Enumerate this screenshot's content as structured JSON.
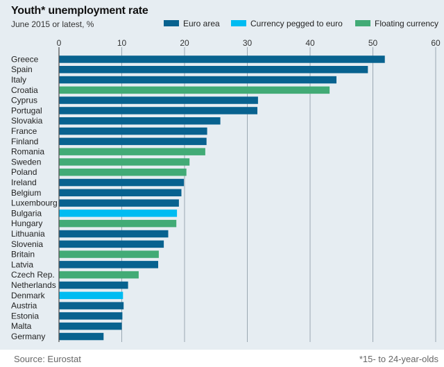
{
  "chart_data": {
    "type": "bar",
    "orientation": "horizontal",
    "title": "Youth* unemployment rate",
    "subtitle": "June 2015 or latest, %",
    "xlim": [
      0,
      60
    ],
    "xticks": [
      0,
      10,
      20,
      30,
      40,
      50,
      60
    ],
    "grid": true,
    "legend_position": "top-right",
    "legend": [
      {
        "name": "Euro area",
        "color": "#08628f"
      },
      {
        "name": "Currency pegged to euro",
        "color": "#00bcf2"
      },
      {
        "name": "Floating currency",
        "color": "#42ab76"
      }
    ],
    "categories": [
      "Greece",
      "Spain",
      "Italy",
      "Croatia",
      "Cyprus",
      "Portugal",
      "Slovakia",
      "France",
      "Finland",
      "Romania",
      "Sweden",
      "Poland",
      "Ireland",
      "Belgium",
      "Luxembourg",
      "Bulgaria",
      "Hungary",
      "Lithuania",
      "Slovenia",
      "Britain",
      "Latvia",
      "Czech Rep.",
      "Netherlands",
      "Denmark",
      "Austria",
      "Estonia",
      "Malta",
      "Germany"
    ],
    "values": [
      51.9,
      49.2,
      44.2,
      43.1,
      31.7,
      31.6,
      25.7,
      23.6,
      23.5,
      23.3,
      20.8,
      20.3,
      19.9,
      19.5,
      19.1,
      18.8,
      18.7,
      17.4,
      16.7,
      15.9,
      15.8,
      12.7,
      11.0,
      10.2,
      10.3,
      10.1,
      10.0,
      7.1
    ],
    "groups": [
      "Euro area",
      "Euro area",
      "Euro area",
      "Floating currency",
      "Euro area",
      "Euro area",
      "Euro area",
      "Euro area",
      "Euro area",
      "Floating currency",
      "Floating currency",
      "Floating currency",
      "Euro area",
      "Euro area",
      "Euro area",
      "Currency pegged to euro",
      "Floating currency",
      "Euro area",
      "Euro area",
      "Floating currency",
      "Euro area",
      "Floating currency",
      "Euro area",
      "Currency pegged to euro",
      "Euro area",
      "Euro area",
      "Euro area",
      "Euro area"
    ]
  },
  "footer": {
    "source": "Source: Eurostat",
    "footnote": "*15- to 24-year-olds"
  },
  "colors": {
    "background": "#e6edf2",
    "gridline": "#9aa7b1"
  }
}
